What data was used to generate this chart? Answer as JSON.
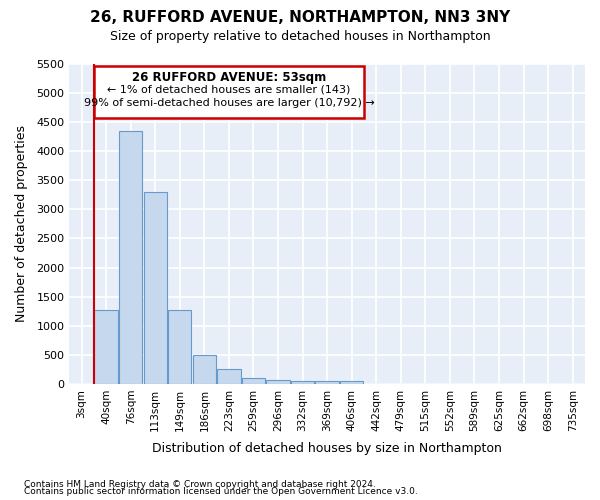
{
  "title_line1": "26, RUFFORD AVENUE, NORTHAMPTON, NN3 3NY",
  "title_line2": "Size of property relative to detached houses in Northampton",
  "xlabel": "Distribution of detached houses by size in Northampton",
  "ylabel": "Number of detached properties",
  "categories": [
    "3sqm",
    "40sqm",
    "76sqm",
    "113sqm",
    "149sqm",
    "186sqm",
    "223sqm",
    "259sqm",
    "296sqm",
    "332sqm",
    "369sqm",
    "406sqm",
    "442sqm",
    "479sqm",
    "515sqm",
    "552sqm",
    "589sqm",
    "625sqm",
    "662sqm",
    "698sqm",
    "735sqm"
  ],
  "values": [
    0,
    1275,
    4350,
    3300,
    1275,
    500,
    250,
    100,
    75,
    50,
    50,
    50,
    0,
    0,
    0,
    0,
    0,
    0,
    0,
    0,
    0
  ],
  "bar_color": "#c5d8ed",
  "bar_edge_color": "#6699cc",
  "vline_x_index": 1,
  "vline_color": "#cc0000",
  "ylim": [
    0,
    5500
  ],
  "yticks": [
    0,
    500,
    1000,
    1500,
    2000,
    2500,
    3000,
    3500,
    4000,
    4500,
    5000,
    5500
  ],
  "annotation_title": "26 RUFFORD AVENUE: 53sqm",
  "annotation_line1": "← 1% of detached houses are smaller (143)",
  "annotation_line2": "99% of semi-detached houses are larger (10,792) →",
  "annotation_box_color": "#cc0000",
  "plot_bg_color": "#e8eef7",
  "fig_bg_color": "#ffffff",
  "grid_color": "#ffffff",
  "footnote1": "Contains HM Land Registry data © Crown copyright and database right 2024.",
  "footnote2": "Contains public sector information licensed under the Open Government Licence v3.0."
}
